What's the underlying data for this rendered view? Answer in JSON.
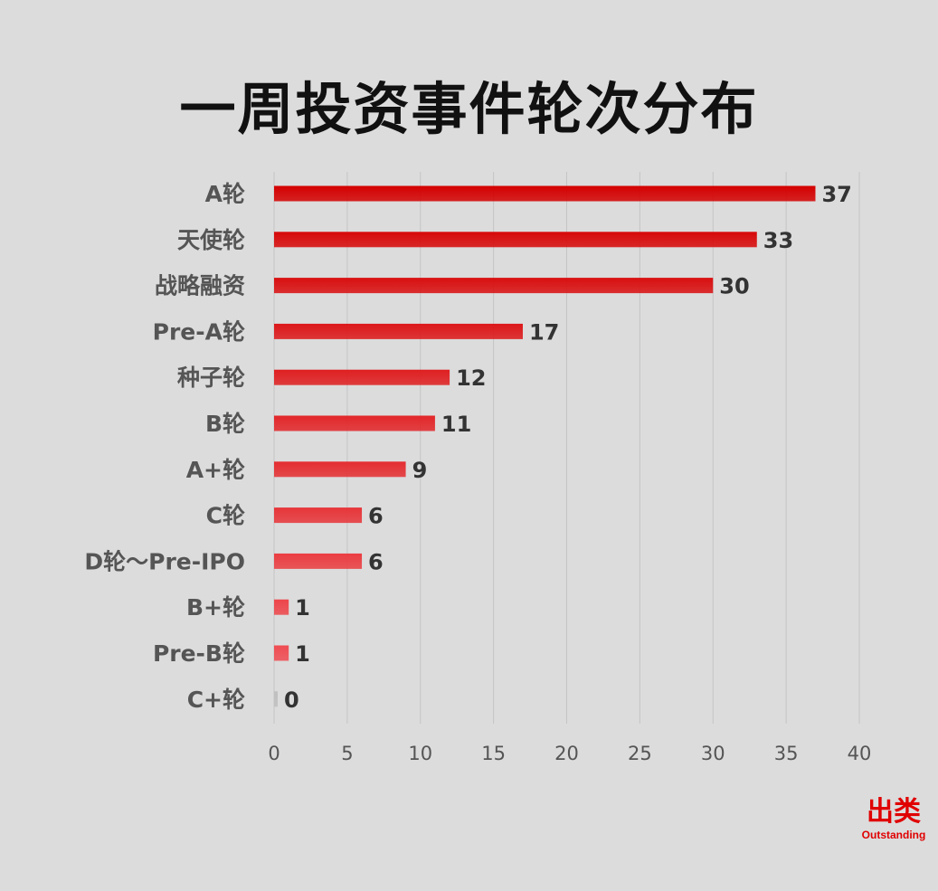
{
  "chart_data": {
    "type": "bar",
    "orientation": "horizontal",
    "title": "一周投资事件轮次分布",
    "categories": [
      "A轮",
      "天使轮",
      "战略融资",
      "Pre-A轮",
      "种子轮",
      "B轮",
      "A+轮",
      "C轮",
      "D轮～Pre-IPO",
      "B+轮",
      "Pre-B轮",
      "C+轮"
    ],
    "values": [
      37,
      33,
      30,
      17,
      12,
      11,
      9,
      6,
      6,
      1,
      1,
      0
    ],
    "xlim": [
      0,
      40
    ],
    "xticks": [
      0,
      5,
      10,
      15,
      20,
      25,
      30,
      35,
      40
    ],
    "grid": true,
    "legend": "none",
    "colors": {
      "bar_dark": "#d40000",
      "bar_light": "#f2545a",
      "empty_bar": "#bfbfbf",
      "grid": "#c4c4c4"
    }
  },
  "logo": {
    "cn": "出类",
    "en": "Outstanding"
  }
}
